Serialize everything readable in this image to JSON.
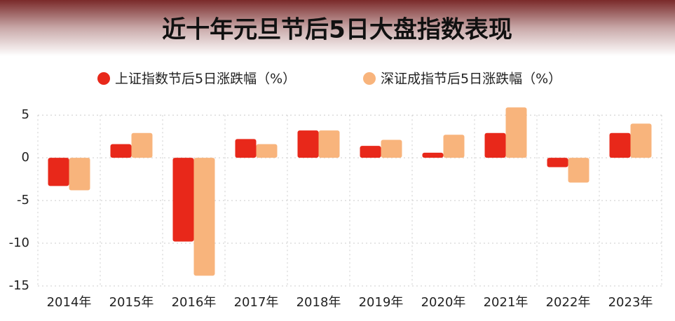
{
  "chart_data": {
    "type": "bar",
    "title": "近十年元旦节后5日大盘指数表现",
    "categories": [
      "2014年",
      "2015年",
      "2016年",
      "2017年",
      "2018年",
      "2019年",
      "2020年",
      "2021年",
      "2022年",
      "2023年"
    ],
    "series": [
      {
        "name": "上证指数节后5日涨跌幅（%）",
        "color": "#e8281a",
        "values": [
          -3.3,
          1.6,
          -9.8,
          2.2,
          3.2,
          1.4,
          0.6,
          2.9,
          -1.1,
          2.9
        ]
      },
      {
        "name": "深证成指节后5日涨跌幅（%）",
        "color": "#f8b47c",
        "values": [
          -3.8,
          2.9,
          -13.8,
          1.6,
          3.2,
          2.1,
          2.7,
          5.9,
          -2.9,
          4.0
        ]
      }
    ],
    "ylim": [
      -15,
      6
    ],
    "yticks": [
      5,
      0,
      -5,
      -10,
      -15
    ],
    "grid": true
  }
}
